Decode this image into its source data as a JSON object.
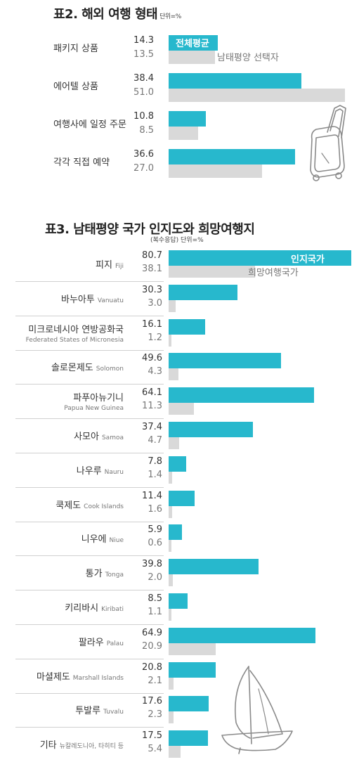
{
  "chart_data": [
    {
      "type": "bar",
      "title": "표2. 해외 여행 형태",
      "unit": "단위=%",
      "categories": [
        "패키지 상품",
        "에어텔 상품",
        "여행사에 일정 주문",
        "각각 직접 예약"
      ],
      "series": [
        {
          "name": "전체평균",
          "values": [
            14.3,
            38.4,
            10.8,
            36.6
          ],
          "color": "#27b8cd"
        },
        {
          "name": "남태평양 선택자",
          "values": [
            13.5,
            51.0,
            8.5,
            27.0
          ],
          "color": "#d9d9d9"
        }
      ],
      "ylim": [
        0,
        51.0
      ]
    },
    {
      "type": "bar",
      "title": "표3. 남태평양 국가 인지도와 희망여행지",
      "note": "(복수응답)",
      "unit": "단위=%",
      "categories": [
        {
          "ko": "피지",
          "en": "Fiji"
        },
        {
          "ko": "바누아투",
          "en": "Vanuatu"
        },
        {
          "ko": "미크로네시아 연방공화국",
          "en": "Federated States of Micronesia"
        },
        {
          "ko": "솔로몬제도",
          "en": "Solomon"
        },
        {
          "ko": "파푸아뉴기니",
          "en": "Papua New Guinea"
        },
        {
          "ko": "사모아",
          "en": "Samoa"
        },
        {
          "ko": "나우루",
          "en": "Nauru"
        },
        {
          "ko": "쿡제도",
          "en": "Cook Islands"
        },
        {
          "ko": "니우에",
          "en": "Niue"
        },
        {
          "ko": "통가",
          "en": "Tonga"
        },
        {
          "ko": "키리바시",
          "en": "Kiribati"
        },
        {
          "ko": "팔라우",
          "en": "Palau"
        },
        {
          "ko": "마셜제도",
          "en": "Marshall Islands"
        },
        {
          "ko": "투발루",
          "en": "Tuvalu"
        },
        {
          "ko": "기타",
          "en": "뉴칼레도니아, 타히티 등"
        }
      ],
      "series": [
        {
          "name": "인지국가",
          "values": [
            80.7,
            30.3,
            16.1,
            49.6,
            64.1,
            37.4,
            7.8,
            11.4,
            5.9,
            39.8,
            8.5,
            64.9,
            20.8,
            17.6,
            17.5
          ],
          "color": "#27b8cd"
        },
        {
          "name": "희망여행국가",
          "values": [
            38.1,
            3.0,
            1.2,
            4.3,
            11.3,
            4.7,
            1.4,
            1.6,
            0.6,
            2.0,
            1.1,
            20.9,
            2.1,
            2.3,
            5.4
          ],
          "color": "#d9d9d9"
        }
      ],
      "ylim": [
        0,
        80.7
      ]
    }
  ],
  "decorations": [
    "suitcase-icon",
    "sailboat-icon"
  ]
}
